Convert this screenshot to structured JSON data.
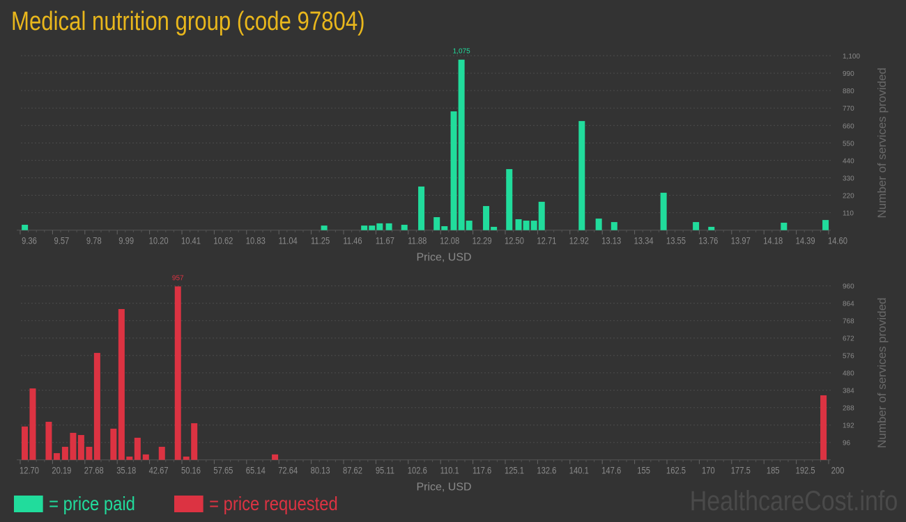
{
  "title": "Medical nutrition group (code 97804)",
  "colors": {
    "paid": "#21dc9c",
    "requested": "#dc3342",
    "title": "#e9b71c"
  },
  "legend": {
    "paid": "= price paid",
    "requested": "= price requested"
  },
  "watermark": "HealthcareCost.info",
  "chart_data": [
    {
      "type": "bar",
      "name": "price-paid",
      "xlabel": "Price, USD",
      "ylabel": "Number of services provided",
      "xlim": [
        9.36,
        14.6
      ],
      "ylim": [
        0,
        1100
      ],
      "bin_width": 0.052,
      "xticks": [
        "9.36",
        "9.57",
        "9.78",
        "9.99",
        "10.20",
        "10.41",
        "10.62",
        "10.83",
        "11.04",
        "11.25",
        "11.46",
        "11.67",
        "11.88",
        "12.08",
        "12.29",
        "12.50",
        "12.71",
        "12.92",
        "13.13",
        "13.34",
        "13.55",
        "13.76",
        "13.97",
        "14.18",
        "14.39",
        "14.60"
      ],
      "yticks": [
        "110",
        "220",
        "330",
        "440",
        "550",
        "660",
        "770",
        "880",
        "990",
        "1,100"
      ],
      "ytick_values": [
        110,
        220,
        330,
        440,
        550,
        660,
        770,
        880,
        990,
        1100
      ],
      "max_label": "1,075",
      "x": [
        9.39,
        11.33,
        11.59,
        11.64,
        11.69,
        11.75,
        11.85,
        11.96,
        12.06,
        12.11,
        12.17,
        12.22,
        12.27,
        12.38,
        12.43,
        12.53,
        12.59,
        12.64,
        12.69,
        12.74,
        13.0,
        13.11,
        13.21,
        13.53,
        13.74,
        13.84,
        14.31,
        14.58
      ],
      "values": [
        34,
        29,
        29,
        29,
        43,
        43,
        34,
        275,
        82,
        25,
        749,
        1075,
        60,
        152,
        21,
        385,
        69,
        60,
        60,
        179,
        688,
        73,
        51,
        236,
        51,
        21,
        47,
        64
      ]
    },
    {
      "type": "bar",
      "name": "price-requested",
      "xlabel": "Price, USD",
      "ylabel": "Number of services provided",
      "xlim": [
        12.7,
        200
      ],
      "ylim": [
        0,
        960
      ],
      "bin_width": 1.87,
      "xticks": [
        "12.70",
        "20.19",
        "27.68",
        "35.18",
        "42.67",
        "50.16",
        "57.65",
        "65.14",
        "72.64",
        "80.13",
        "87.62",
        "95.11",
        "102.6",
        "110.1",
        "117.6",
        "125.1",
        "132.6",
        "140.1",
        "147.6",
        "155",
        "162.5",
        "170",
        "177.5",
        "185",
        "192.5",
        "200"
      ],
      "yticks": [
        "96",
        "192",
        "288",
        "384",
        "480",
        "576",
        "672",
        "768",
        "864",
        "960"
      ],
      "ytick_values": [
        96,
        192,
        288,
        384,
        480,
        576,
        672,
        768,
        864,
        960
      ],
      "max_label": "957",
      "x": [
        13.75,
        15.6,
        19.31,
        21.17,
        23.1,
        24.96,
        26.81,
        28.67,
        30.52,
        34.31,
        36.17,
        38.02,
        39.88,
        41.81,
        45.52,
        49.23,
        51.17,
        53.02,
        71.73,
        198.8
      ],
      "values": [
        184,
        394,
        210,
        37,
        72,
        149,
        137,
        72,
        590,
        172,
        832,
        18,
        122,
        30,
        72,
        957,
        18,
        202,
        30,
        356
      ]
    }
  ]
}
